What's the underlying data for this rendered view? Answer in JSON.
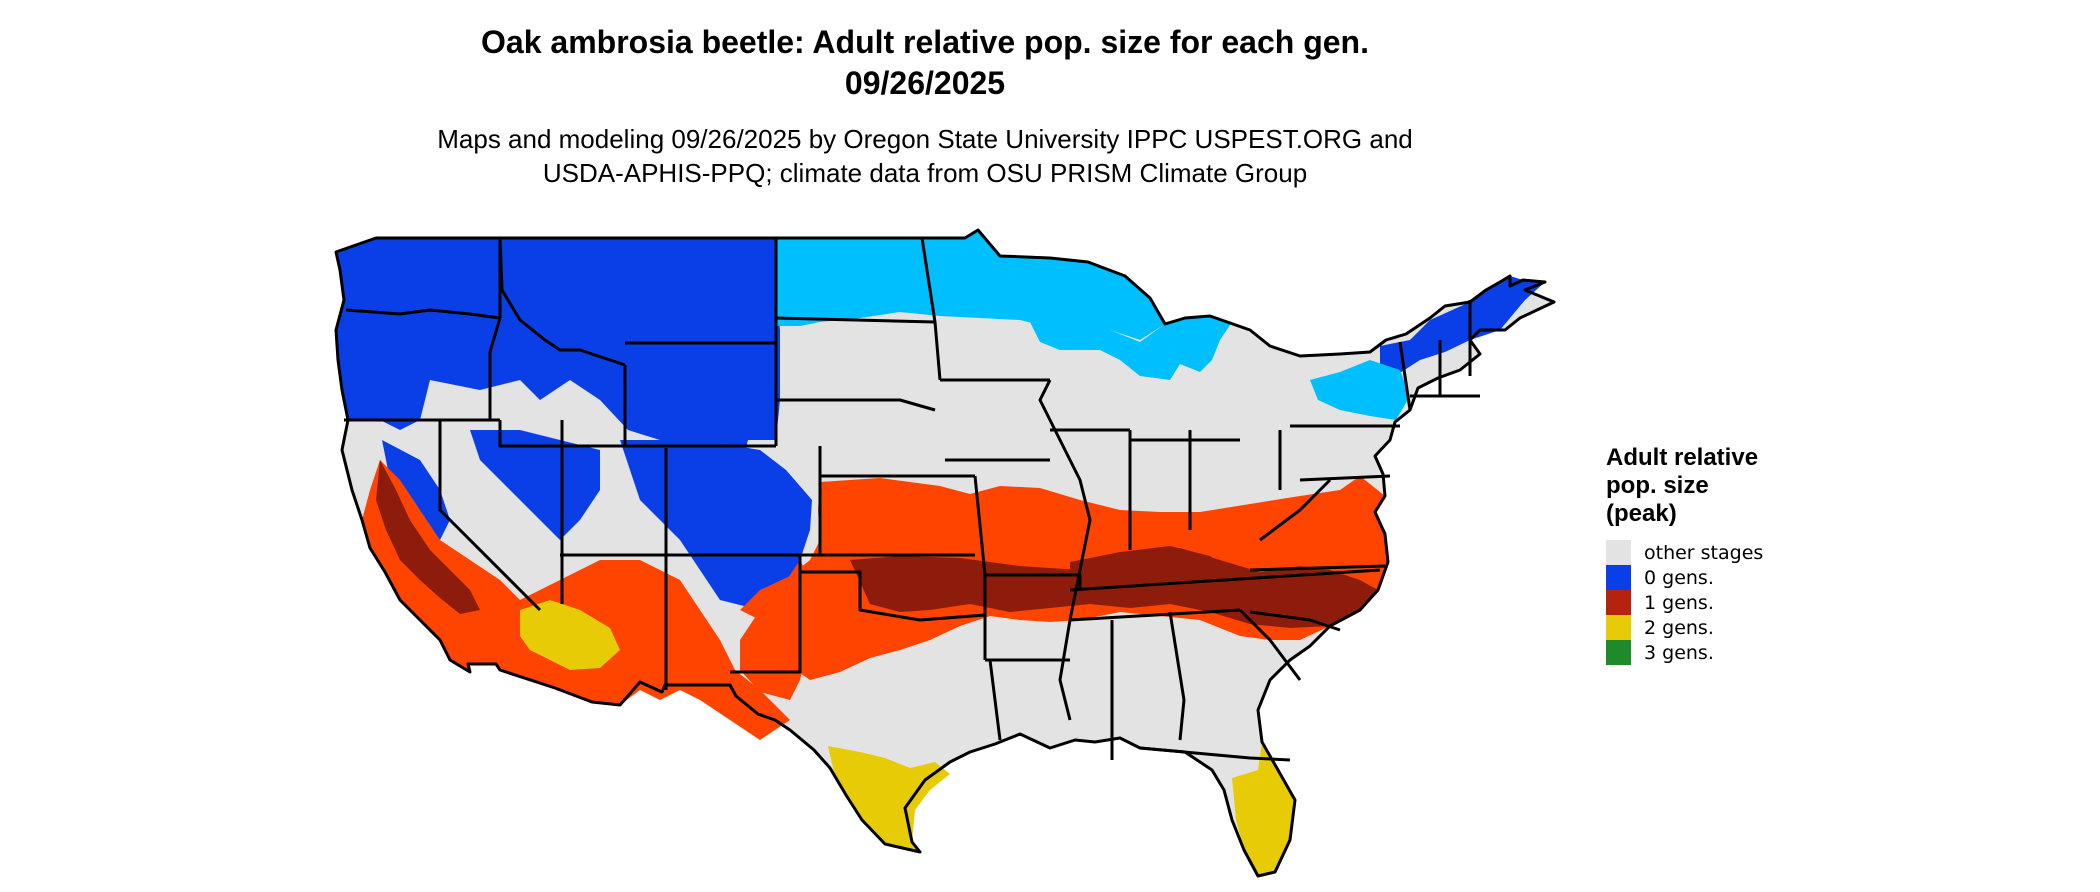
{
  "title": {
    "line1": "Oak ambrosia beetle: Adult relative pop. size for each gen.",
    "line2": "09/26/2025"
  },
  "subtitle": {
    "line1": "Maps and modeling 09/26/2025 by Oregon State University IPPC USPEST.ORG and",
    "line2": "USDA-APHIS-PPQ; climate data from OSU PRISM Climate Group"
  },
  "legend": {
    "title_line1": "Adult relative",
    "title_line2": "pop. size",
    "title_line3": "(peak)",
    "items": [
      {
        "label": "other stages",
        "color": "#e3e3e3"
      },
      {
        "label": "0 gens.",
        "color": "#0a3ee6"
      },
      {
        "label": "1 gens.",
        "color": "#b5230f"
      },
      {
        "label": "2 gens.",
        "color": "#e6cb06"
      },
      {
        "label": "3 gens.",
        "color": "#1f8a2a"
      }
    ]
  },
  "palette": {
    "light_blue": "#00bfff",
    "dark_blue": "#0033dd",
    "orange": "#ff4400",
    "dark_red": "#8e1c0d",
    "yellow": "#e6d800",
    "gray": "#e3e3e3",
    "border": "#000000"
  }
}
